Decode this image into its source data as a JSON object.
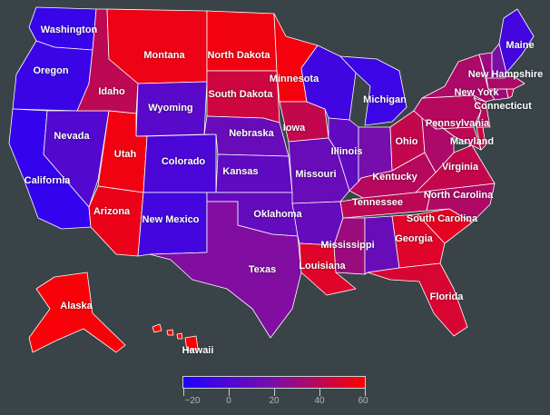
{
  "map": {
    "colors": {
      "background": "#3a4347",
      "scale_low": "#2200ff",
      "scale_mid": "#7a0fa8",
      "scale_high": "#ff0000",
      "border": "#ffffff"
    },
    "states": [
      {
        "id": "wa",
        "label": "Washington",
        "value": -10
      },
      {
        "id": "or",
        "label": "Oregon",
        "value": -9
      },
      {
        "id": "ca",
        "label": "California",
        "value": -12
      },
      {
        "id": "nv",
        "label": "Nevada",
        "value": 2
      },
      {
        "id": "id",
        "label": "Idaho",
        "value": 40
      },
      {
        "id": "mt",
        "label": "Montana",
        "value": 55
      },
      {
        "id": "wy",
        "label": "Wyoming",
        "value": 5
      },
      {
        "id": "ut",
        "label": "Utah",
        "value": 56
      },
      {
        "id": "az",
        "label": "Arizona",
        "value": 54
      },
      {
        "id": "co",
        "label": "Colorado",
        "value": -2
      },
      {
        "id": "nm",
        "label": "New Mexico",
        "value": -5
      },
      {
        "id": "nd",
        "label": "North Dakota",
        "value": 56
      },
      {
        "id": "sd",
        "label": "South Dakota",
        "value": 45
      },
      {
        "id": "ne",
        "label": "Nebraska",
        "value": 12
      },
      {
        "id": "ks",
        "label": "Kansas",
        "value": 8
      },
      {
        "id": "ok",
        "label": "Oklahoma",
        "value": 10
      },
      {
        "id": "tx",
        "label": "Texas",
        "value": 22
      },
      {
        "id": "mn",
        "label": "Minnesota",
        "value": 57
      },
      {
        "id": "ia",
        "label": "Iowa",
        "value": 42
      },
      {
        "id": "mo",
        "label": "Missouri",
        "value": 12
      },
      {
        "id": "ar",
        "label": "",
        "value": 10
      },
      {
        "id": "la",
        "label": "Louisiana",
        "value": 50
      },
      {
        "id": "wi",
        "label": "",
        "value": -6
      },
      {
        "id": "il",
        "label": "Illinois",
        "value": 8
      },
      {
        "id": "ms",
        "label": "Mississippi",
        "value": 30
      },
      {
        "id": "mi",
        "label": "Michigan",
        "value": -8
      },
      {
        "id": "in",
        "label": "",
        "value": 18
      },
      {
        "id": "oh",
        "label": "Ohio",
        "value": 42
      },
      {
        "id": "ky",
        "label": "Kentucky",
        "value": 38
      },
      {
        "id": "tn",
        "label": "Tennessee",
        "value": 40
      },
      {
        "id": "al",
        "label": "",
        "value": 12
      },
      {
        "id": "ga",
        "label": "Georgia",
        "value": 50
      },
      {
        "id": "fl",
        "label": "Florida",
        "value": 48
      },
      {
        "id": "sc",
        "label": "South Carolina",
        "value": 52
      },
      {
        "id": "nc",
        "label": "North Carolina",
        "value": 36
      },
      {
        "id": "va",
        "label": "Virginia",
        "value": 42
      },
      {
        "id": "wv",
        "label": "",
        "value": 35
      },
      {
        "id": "pa",
        "label": "Pennsylvania",
        "value": 38
      },
      {
        "id": "ny",
        "label": "New York",
        "value": 35
      },
      {
        "id": "md",
        "label": "Maryland",
        "value": 40
      },
      {
        "id": "de",
        "label": "",
        "value": 45
      },
      {
        "id": "nj",
        "label": "",
        "value": 38
      },
      {
        "id": "ct",
        "label": "Connecticut",
        "value": 30
      },
      {
        "id": "ri",
        "label": "",
        "value": 40
      },
      {
        "id": "ma",
        "label": "",
        "value": 35
      },
      {
        "id": "vt",
        "label": "",
        "value": 30
      },
      {
        "id": "nh",
        "label": "New Hampshire",
        "value": 20
      },
      {
        "id": "me",
        "label": "Maine",
        "value": -5
      },
      {
        "id": "ak",
        "label": "Alaska",
        "value": 58
      },
      {
        "id": "hi",
        "label": "Hawaii",
        "value": 60
      }
    ]
  },
  "legend": {
    "min": -20,
    "max": 60,
    "ticks": [
      {
        "value": -20,
        "label": "−20"
      },
      {
        "value": 0,
        "label": "0"
      },
      {
        "value": 20,
        "label": "20"
      },
      {
        "value": 40,
        "label": "40"
      },
      {
        "value": 60,
        "label": "60"
      }
    ]
  }
}
